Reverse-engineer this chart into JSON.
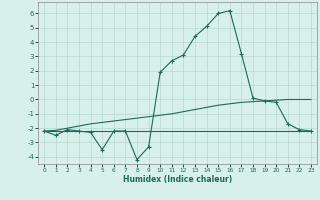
{
  "x": [
    0,
    1,
    2,
    3,
    4,
    5,
    6,
    7,
    8,
    9,
    10,
    11,
    12,
    13,
    14,
    15,
    16,
    17,
    18,
    19,
    20,
    21,
    22,
    23
  ],
  "y_main": [
    -2.2,
    -2.5,
    -2.1,
    -2.2,
    -2.3,
    -3.5,
    -2.2,
    -2.2,
    -4.2,
    -3.3,
    1.9,
    2.7,
    3.1,
    4.4,
    5.1,
    6.0,
    6.2,
    3.2,
    0.1,
    -0.1,
    -0.2,
    -1.7,
    -2.1,
    -2.2
  ],
  "y_upper": [
    -2.2,
    -2.15,
    -2.0,
    -1.85,
    -1.7,
    -1.6,
    -1.5,
    -1.4,
    -1.3,
    -1.2,
    -1.1,
    -1.0,
    -0.85,
    -0.7,
    -0.55,
    -0.4,
    -0.3,
    -0.2,
    -0.15,
    -0.1,
    -0.05,
    0.0,
    0.0,
    0.0
  ],
  "y_lower": [
    -2.2,
    -2.2,
    -2.2,
    -2.2,
    -2.2,
    -2.2,
    -2.2,
    -2.2,
    -2.2,
    -2.2,
    -2.2,
    -2.2,
    -2.2,
    -2.2,
    -2.2,
    -2.2,
    -2.2,
    -2.2,
    -2.2,
    -2.2,
    -2.2,
    -2.2,
    -2.2,
    -2.2
  ],
  "line_color": "#1a6b5a",
  "bg_color": "#d8f0ec",
  "grid_color": "#b8d8d2",
  "xlabel": "Humidex (Indice chaleur)",
  "ylim": [
    -4.5,
    6.8
  ],
  "xlim": [
    -0.5,
    23.5
  ],
  "yticks": [
    -4,
    -3,
    -2,
    -1,
    0,
    1,
    2,
    3,
    4,
    5,
    6
  ],
  "xticks": [
    0,
    1,
    2,
    3,
    4,
    5,
    6,
    7,
    8,
    9,
    10,
    11,
    12,
    13,
    14,
    15,
    16,
    17,
    18,
    19,
    20,
    21,
    22,
    23
  ]
}
